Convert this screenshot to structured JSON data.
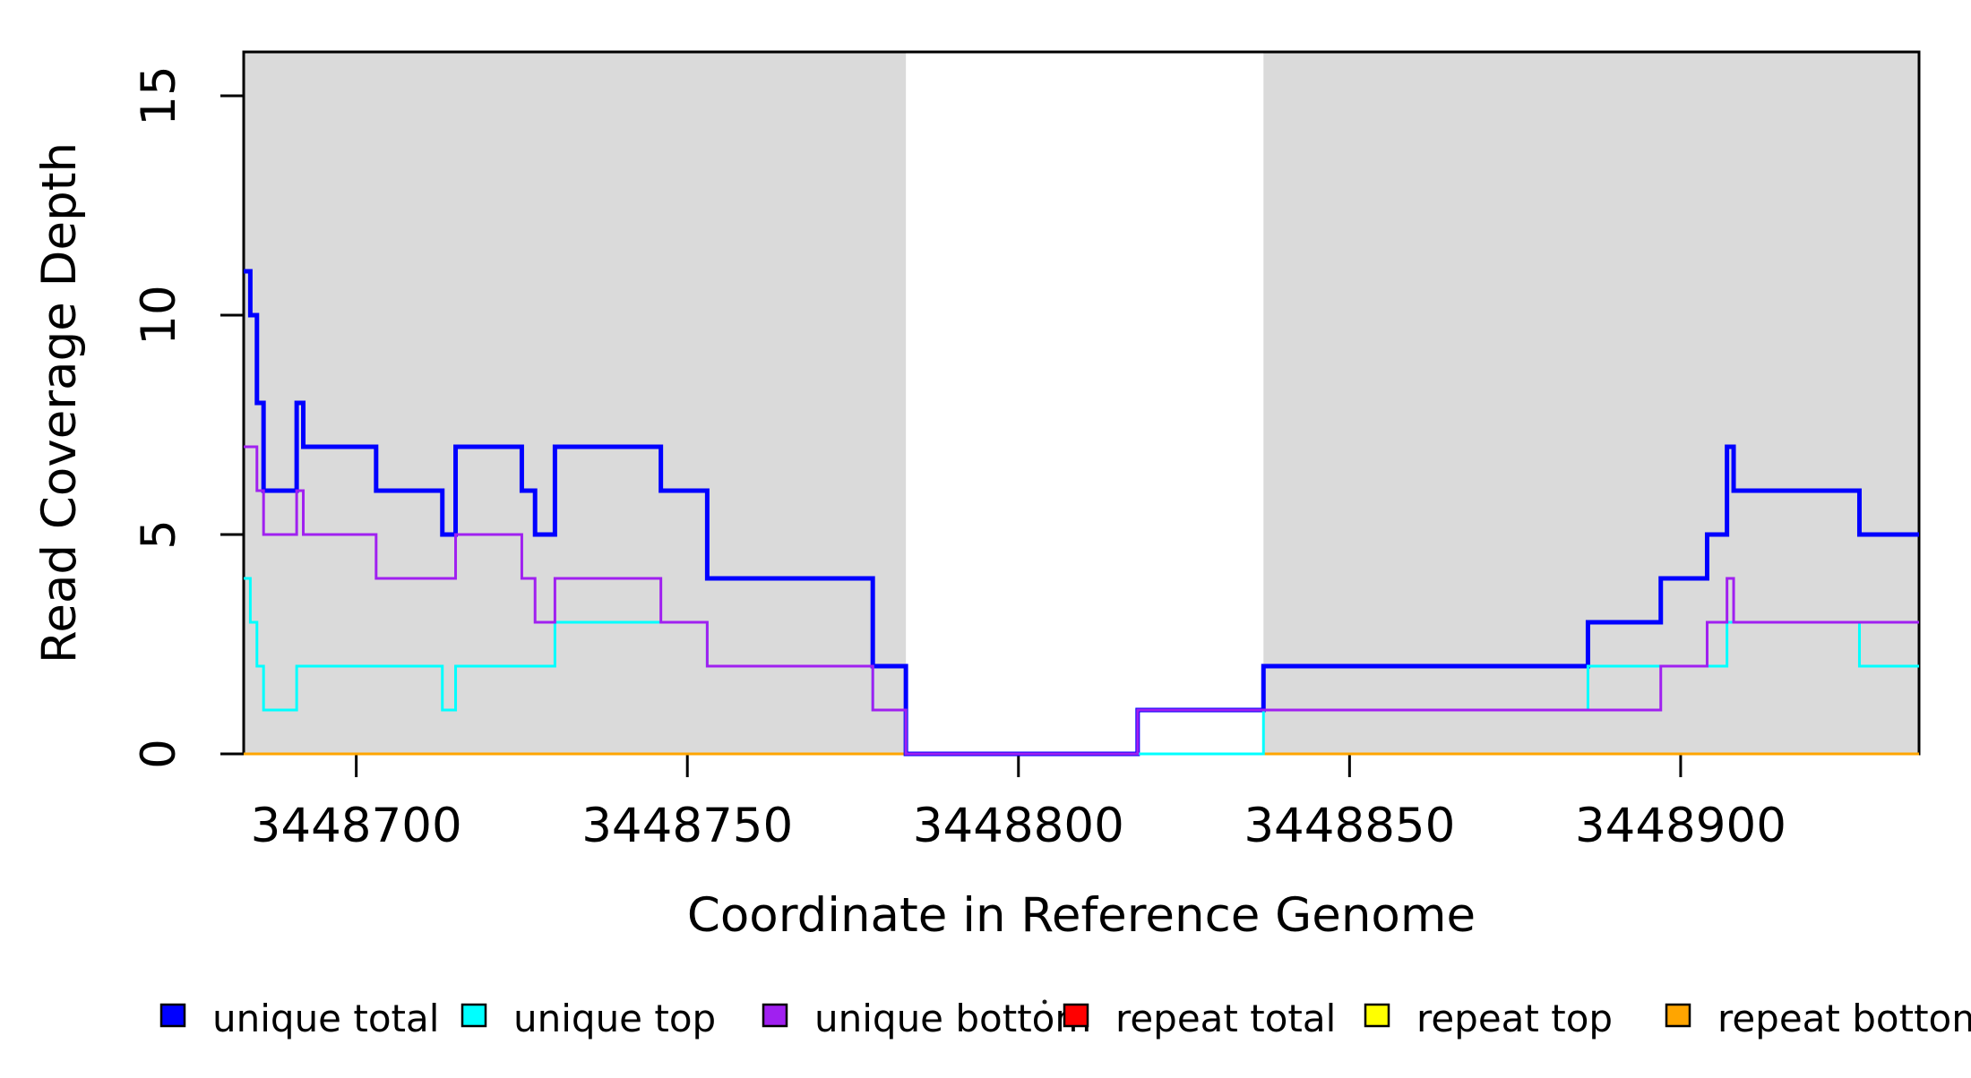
{
  "chart_data": {
    "type": "line",
    "subtype": "step",
    "title": "",
    "xlabel": "Coordinate in Reference Genome",
    "ylabel": "Read Coverage Depth",
    "xlim": [
      3448683,
      3448936
    ],
    "ylim": [
      0,
      16
    ],
    "x_ticks": [
      3448700,
      3448750,
      3448800,
      3448850,
      3448900
    ],
    "y_ticks": [
      0,
      5,
      10,
      15
    ],
    "grid": false,
    "legend_position": "bottom",
    "background_color": "#ffffff",
    "shaded_region_color": "#DADADA",
    "shaded_regions": [
      {
        "x0": 3448683,
        "x1": 3448783
      },
      {
        "x0": 3448837,
        "x1": 3448936
      }
    ],
    "draw_order": [
      "repeat total",
      "repeat top",
      "repeat bottom",
      "unique total",
      "unique top",
      "unique bottom"
    ],
    "series": [
      {
        "name": "unique total",
        "color": "#0000FF",
        "line_width": 5,
        "steps": [
          [
            3448683,
            11
          ],
          [
            3448684,
            10
          ],
          [
            3448685,
            8
          ],
          [
            3448686,
            6
          ],
          [
            3448691,
            8
          ],
          [
            3448692,
            7
          ],
          [
            3448703,
            6
          ],
          [
            3448713,
            5
          ],
          [
            3448715,
            7
          ],
          [
            3448725,
            6
          ],
          [
            3448727,
            5
          ],
          [
            3448730,
            7
          ],
          [
            3448746,
            6
          ],
          [
            3448753,
            4
          ],
          [
            3448778,
            2
          ],
          [
            3448783,
            0
          ],
          [
            3448818,
            1
          ],
          [
            3448837,
            2
          ],
          [
            3448886,
            3
          ],
          [
            3448897,
            4
          ],
          [
            3448904,
            5
          ],
          [
            3448907,
            7
          ],
          [
            3448908,
            6
          ],
          [
            3448927,
            5
          ]
        ]
      },
      {
        "name": "unique top",
        "color": "#00FFFF",
        "line_width": 3,
        "steps": [
          [
            3448683,
            4
          ],
          [
            3448684,
            3
          ],
          [
            3448685,
            2
          ],
          [
            3448686,
            1
          ],
          [
            3448691,
            2
          ],
          [
            3448713,
            1
          ],
          [
            3448715,
            2
          ],
          [
            3448730,
            3
          ],
          [
            3448753,
            2
          ],
          [
            3448778,
            1
          ],
          [
            3448783,
            0
          ],
          [
            3448837,
            1
          ],
          [
            3448886,
            2
          ],
          [
            3448907,
            3
          ],
          [
            3448927,
            2
          ]
        ]
      },
      {
        "name": "unique bottom",
        "color": "#A020F0",
        "line_width": 3,
        "steps": [
          [
            3448683,
            7
          ],
          [
            3448685,
            6
          ],
          [
            3448686,
            5
          ],
          [
            3448691,
            6
          ],
          [
            3448692,
            5
          ],
          [
            3448703,
            4
          ],
          [
            3448715,
            5
          ],
          [
            3448725,
            4
          ],
          [
            3448727,
            3
          ],
          [
            3448730,
            4
          ],
          [
            3448746,
            3
          ],
          [
            3448753,
            2
          ],
          [
            3448778,
            1
          ],
          [
            3448783,
            0
          ],
          [
            3448818,
            1
          ],
          [
            3448897,
            2
          ],
          [
            3448904,
            3
          ],
          [
            3448907,
            4
          ],
          [
            3448908,
            3
          ]
        ]
      },
      {
        "name": "repeat total",
        "color": "#FF0000",
        "line_width": 3,
        "steps": [
          [
            3448683,
            0
          ]
        ]
      },
      {
        "name": "repeat top",
        "color": "#FFFF00",
        "line_width": 3,
        "steps": [
          [
            3448683,
            0
          ]
        ]
      },
      {
        "name": "repeat bottom",
        "color": "#FFA500",
        "line_width": 3,
        "steps": [
          [
            3448683,
            0
          ]
        ]
      }
    ]
  }
}
